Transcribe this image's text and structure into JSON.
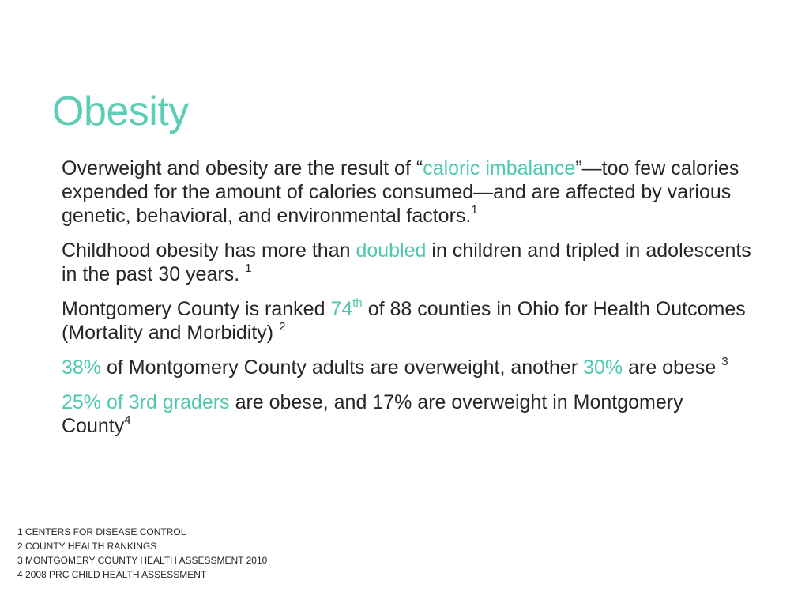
{
  "slide": {
    "title": "Obesity"
  },
  "paragraphs": {
    "p1": {
      "text_a": "Overweight and obesity are the result of “",
      "highlight": "caloric imbalance",
      "text_b": "”—too few calories expended for the amount of calories consumed—and are affected by various genetic, behavioral, and environmental factors.",
      "ref": "1"
    },
    "p2": {
      "text_a": "Childhood obesity has more than ",
      "highlight": "doubled",
      "text_b": " in children and tripled in adolescents in the past 30 years. ",
      "ref": "1"
    },
    "p3": {
      "text_a": "Montgomery County is ranked ",
      "highlight": "74",
      "highlight_sup": "th",
      "text_b": " of 88 counties in Ohio for Health Outcomes (Mortality and Morbidity) ",
      "ref": "2"
    },
    "p4": {
      "highlight_a": "38%",
      "text_a": " of Montgomery County adults are overweight, another ",
      "highlight_b": "30%",
      "text_b": " are obese ",
      "ref": "3"
    },
    "p5": {
      "highlight": "25% of 3rd graders",
      "text_a": " are obese, and 17% are overweight in Montgomery County",
      "ref": "4"
    }
  },
  "footnotes": [
    "1 CENTERS FOR DISEASE CONTROL",
    "2 COUNTY HEALTH RANKINGS",
    "3 MONTGOMERY COUNTY HEALTH ASSESSMENT 2010",
    "4 2008 PRC CHILD HEALTH ASSESSMENT"
  ],
  "colors": {
    "accent": "#5ecdb5",
    "text": "#262626",
    "background": "#ffffff"
  }
}
